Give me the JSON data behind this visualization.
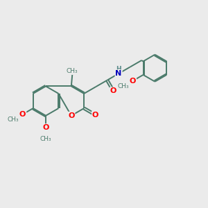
{
  "background_color": "#ebebeb",
  "bond_color": "#4a7a6a",
  "oxygen_color": "#ff0000",
  "nitrogen_color": "#0000bb",
  "h_color": "#5a8a8a",
  "line_width": 1.4,
  "dbo": 0.055,
  "figsize": [
    3.0,
    3.0
  ],
  "dpi": 100,
  "xlim": [
    0,
    10
  ],
  "ylim": [
    0,
    10
  ],
  "r_hex": 0.72,
  "bl": 0.72
}
